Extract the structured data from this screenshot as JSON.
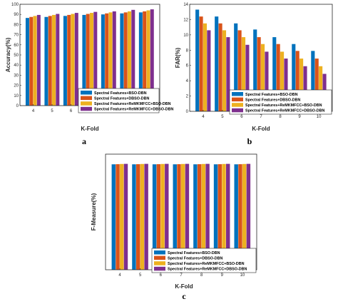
{
  "colors": [
    "#0072BD",
    "#D95319",
    "#EDB120",
    "#7E2F8E"
  ],
  "chart_data": [
    {
      "type": "bar",
      "panel": "a",
      "xlabel": "K-Fold",
      "ylabel": "Accuracy(%)",
      "categories": [
        "4",
        "5",
        "6",
        "7",
        "8",
        "9",
        "10"
      ],
      "ylim": [
        0,
        100
      ],
      "yticks": [
        0,
        10,
        20,
        30,
        40,
        50,
        60,
        70,
        80,
        90,
        100
      ],
      "legend_position": "bottom-right",
      "series": [
        {
          "name": "Spectral Features+BSO-DBN",
          "values": [
            86.5,
            87.5,
            88.5,
            89.5,
            90.0,
            91.0,
            92.0
          ]
        },
        {
          "name": "Spectral Features+DBSO-DBN",
          "values": [
            87.5,
            88.5,
            89.5,
            90.5,
            91.0,
            92.0,
            93.0
          ]
        },
        {
          "name": "Spectral Features+ReMKMFCC+BSO-DBN",
          "values": [
            88.5,
            89.5,
            90.5,
            91.5,
            92.0,
            93.0,
            94.0
          ]
        },
        {
          "name": "Spectral Features+ReMKMFCC+DBSO-DBN",
          "values": [
            89.5,
            90.5,
            91.5,
            92.5,
            93.0,
            94.5,
            95.0
          ]
        }
      ]
    },
    {
      "type": "bar",
      "panel": "b",
      "xlabel": "K-Fold",
      "ylabel": "FAR(%)",
      "categories": [
        "4",
        "5",
        "6",
        "7",
        "8",
        "9",
        "10"
      ],
      "ylim": [
        0,
        14
      ],
      "yticks": [
        0,
        2,
        4,
        6,
        8,
        10,
        12,
        14
      ],
      "legend_position": "bottom-right",
      "series": [
        {
          "name": "Spectral Features+BSO-DBN",
          "values": [
            13.3,
            12.4,
            11.5,
            10.7,
            9.7,
            8.8,
            7.9
          ]
        },
        {
          "name": "Spectral Features+DBSO-DBN",
          "values": [
            12.4,
            11.5,
            10.6,
            9.7,
            8.8,
            7.9,
            6.9
          ]
        },
        {
          "name": "Spectral Features+ReMKMFCC+BSO-DBN",
          "values": [
            11.5,
            10.6,
            9.7,
            8.8,
            7.8,
            6.9,
            5.9
          ]
        },
        {
          "name": "Spectral Features+ReMKMFCC+DBSO-DBN",
          "values": [
            10.6,
            9.7,
            8.7,
            7.8,
            6.9,
            5.9,
            4.9
          ]
        }
      ]
    },
    {
      "type": "bar",
      "panel": "c",
      "xlabel": "K-Fold",
      "ylabel": "F-Measure(%)",
      "categories": [
        "4",
        "5",
        "6",
        "7",
        "8",
        "9",
        "10"
      ],
      "ylim": [
        0,
        100
      ],
      "yticks": [],
      "legend_position": "bottom-right",
      "series": [
        {
          "name": "Spectral Features+BSO-DBN",
          "values": [
            91.2,
            91.2,
            91.2,
            91.2,
            91.2,
            91.2,
            91.2
          ]
        },
        {
          "name": "Spectral Features+DBSO-DBN",
          "values": [
            91.3,
            91.3,
            91.3,
            91.3,
            91.3,
            91.3,
            91.3
          ]
        },
        {
          "name": "Spectral Features+ReMKMFCC+BSO-DBN",
          "values": [
            91.5,
            91.5,
            91.5,
            91.5,
            91.5,
            91.5,
            91.5
          ]
        },
        {
          "name": "Spectral Features+ReMKMFCC+DBSO-DBN",
          "values": [
            91.6,
            91.6,
            91.6,
            91.6,
            91.6,
            91.6,
            91.6
          ]
        }
      ]
    }
  ]
}
